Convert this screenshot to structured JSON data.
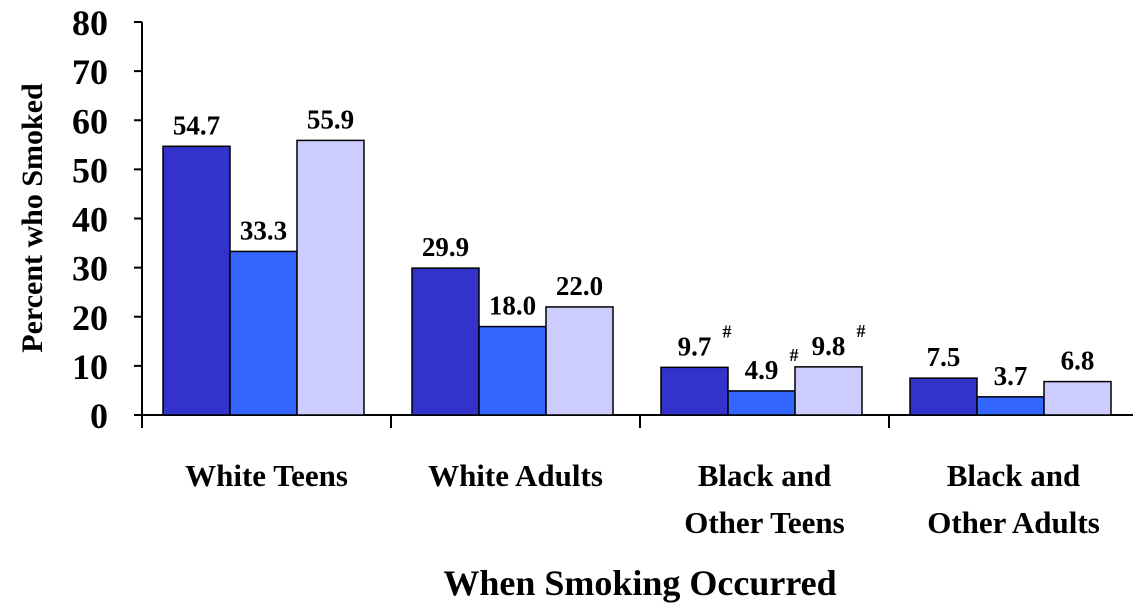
{
  "chart_data": {
    "type": "bar",
    "title": "",
    "xlabel": "When Smoking Occurred",
    "ylabel": "Percent who Smoked",
    "ylim": [
      0,
      80
    ],
    "yticks": [
      0,
      10,
      20,
      30,
      40,
      50,
      60,
      70,
      80
    ],
    "grid": false,
    "legend": "none",
    "categories": [
      [
        "White Teens"
      ],
      [
        "White Adults"
      ],
      [
        "Black and",
        "Other Teens"
      ],
      [
        "Black and",
        "Other Adults"
      ]
    ],
    "series": [
      {
        "color": "#3333cc",
        "values": [
          54.7,
          29.9,
          9.7,
          7.5
        ],
        "labels": [
          "54.7",
          "29.9",
          "9.7",
          "7.5"
        ],
        "notes": [
          "",
          "",
          "#",
          ""
        ]
      },
      {
        "color": "#3366ff",
        "values": [
          33.3,
          18.0,
          4.9,
          3.7
        ],
        "labels": [
          "33.3",
          "18.0",
          "4.9",
          "3.7"
        ],
        "notes": [
          "",
          "",
          "#",
          ""
        ]
      },
      {
        "color": "#ccccff",
        "values": [
          55.9,
          22.0,
          9.8,
          6.8
        ],
        "labels": [
          "55.9",
          "22.0",
          "9.8",
          "6.8"
        ],
        "notes": [
          "",
          "",
          "#",
          ""
        ]
      }
    ]
  }
}
